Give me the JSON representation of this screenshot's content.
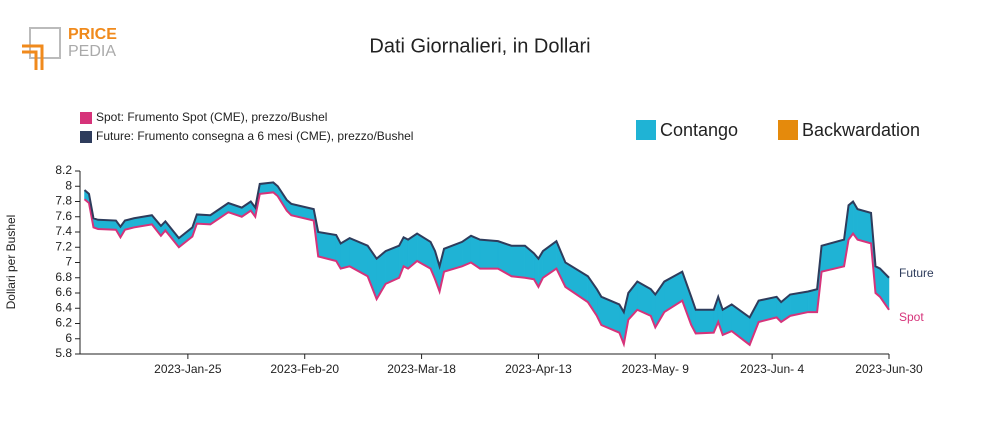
{
  "logo": {
    "top": "PRICE",
    "bottom": "PEDIA"
  },
  "chart_data": {
    "type": "line",
    "title": "Dati Giornalieri, in Dollari",
    "y_label": "Dollari per Bushel",
    "x": [
      "2023-01-02",
      "2023-01-03",
      "2023-01-04",
      "2023-01-05",
      "2023-01-09",
      "2023-01-10",
      "2023-01-11",
      "2023-01-13",
      "2023-01-17",
      "2023-01-19",
      "2023-01-20",
      "2023-01-23",
      "2023-01-26",
      "2023-01-27",
      "2023-01-30",
      "2023-02-01",
      "2023-02-03",
      "2023-02-06",
      "2023-02-08",
      "2023-02-09",
      "2023-02-10",
      "2023-02-13",
      "2023-02-14",
      "2023-02-16",
      "2023-02-17",
      "2023-02-22",
      "2023-02-23",
      "2023-02-27",
      "2023-02-28",
      "2023-03-02",
      "2023-03-06",
      "2023-03-08",
      "2023-03-10",
      "2023-03-13",
      "2023-03-14",
      "2023-03-15",
      "2023-03-17",
      "2023-03-20",
      "2023-03-21",
      "2023-03-22",
      "2023-03-23",
      "2023-03-27",
      "2023-03-29",
      "2023-03-31",
      "2023-04-04",
      "2023-04-07",
      "2023-04-10",
      "2023-04-12",
      "2023-04-13",
      "2023-04-14",
      "2023-04-17",
      "2023-04-19",
      "2023-04-24",
      "2023-04-26",
      "2023-04-27",
      "2023-05-01",
      "2023-05-02",
      "2023-05-03",
      "2023-05-05",
      "2023-05-08",
      "2023-05-09",
      "2023-05-11",
      "2023-05-15",
      "2023-05-17",
      "2023-05-18",
      "2023-05-22",
      "2023-05-23",
      "2023-05-24",
      "2023-05-26",
      "2023-05-30",
      "2023-06-01",
      "2023-06-05",
      "2023-06-06",
      "2023-06-08",
      "2023-06-12",
      "2023-06-14",
      "2023-06-15",
      "2023-06-20",
      "2023-06-21",
      "2023-06-22",
      "2023-06-23",
      "2023-06-26",
      "2023-06-27",
      "2023-06-28",
      "2023-06-30"
    ],
    "series": [
      {
        "name": "Spot: Frumento Spot (CME), prezzo/Bushel",
        "end_label": "Spot",
        "color": "#d6337a",
        "values": [
          7.83,
          7.78,
          7.46,
          7.44,
          7.43,
          7.33,
          7.43,
          7.46,
          7.5,
          7.35,
          7.42,
          7.2,
          7.34,
          7.51,
          7.5,
          7.58,
          7.66,
          7.6,
          7.68,
          7.6,
          7.9,
          7.92,
          7.87,
          7.68,
          7.62,
          7.55,
          7.08,
          7.02,
          6.92,
          6.95,
          6.82,
          6.52,
          6.72,
          6.8,
          6.95,
          6.92,
          7.02,
          6.92,
          6.78,
          6.62,
          6.88,
          6.95,
          7.0,
          6.92,
          6.92,
          6.82,
          6.8,
          6.78,
          6.68,
          6.8,
          6.92,
          6.68,
          6.48,
          6.3,
          6.18,
          6.08,
          5.93,
          6.25,
          6.38,
          6.3,
          6.15,
          6.35,
          6.5,
          6.18,
          6.07,
          6.08,
          6.22,
          6.05,
          6.1,
          5.92,
          6.22,
          6.28,
          6.22,
          6.3,
          6.35,
          6.35,
          6.88,
          6.95,
          7.3,
          7.38,
          7.3,
          7.25,
          6.6,
          6.55,
          6.38
        ]
      },
      {
        "name": "Future: Frumento consegna a 6 mesi (CME), prezzo/Bushel",
        "end_label": "Future",
        "color": "#2e3c5c",
        "values": [
          7.95,
          7.9,
          7.58,
          7.56,
          7.55,
          7.47,
          7.55,
          7.58,
          7.62,
          7.48,
          7.54,
          7.32,
          7.46,
          7.63,
          7.62,
          7.7,
          7.78,
          7.72,
          7.8,
          7.72,
          8.03,
          8.05,
          8.0,
          7.82,
          7.77,
          7.7,
          7.4,
          7.36,
          7.25,
          7.32,
          7.22,
          7.05,
          7.15,
          7.22,
          7.33,
          7.3,
          7.38,
          7.27,
          7.15,
          6.95,
          7.18,
          7.27,
          7.35,
          7.3,
          7.28,
          7.22,
          7.22,
          7.12,
          7.05,
          7.15,
          7.28,
          7.0,
          6.82,
          6.65,
          6.55,
          6.45,
          6.35,
          6.6,
          6.75,
          6.65,
          6.58,
          6.75,
          6.88,
          6.55,
          6.38,
          6.38,
          6.55,
          6.38,
          6.45,
          6.28,
          6.5,
          6.55,
          6.48,
          6.58,
          6.62,
          6.65,
          7.22,
          7.3,
          7.75,
          7.8,
          7.7,
          7.65,
          6.95,
          6.92,
          6.8
        ]
      }
    ],
    "fill_legend": [
      {
        "name": "Contango",
        "color": "#1fb3d5"
      },
      {
        "name": "Backwardation",
        "color": "#e58a0c"
      }
    ],
    "xlim": [
      "2023-01-01",
      "2023-06-30"
    ],
    "xticks": [
      {
        "value": "2023-01-25",
        "label": "2023-Jan-25"
      },
      {
        "value": "2023-02-20",
        "label": "2023-Feb-20"
      },
      {
        "value": "2023-03-18",
        "label": "2023-Mar-18"
      },
      {
        "value": "2023-04-13",
        "label": "2023-Apr-13"
      },
      {
        "value": "2023-05-09",
        "label": "2023-May- 9"
      },
      {
        "value": "2023-06-04",
        "label": "2023-Jun- 4"
      },
      {
        "value": "2023-06-30",
        "label": "2023-Jun-30"
      }
    ],
    "ylim": [
      5.8,
      8.2
    ],
    "yticks": [
      5.8,
      6.0,
      6.2,
      6.4,
      6.6,
      6.8,
      7.0,
      7.2,
      7.4,
      7.6,
      7.8,
      8.0,
      8.2
    ],
    "grid": false
  }
}
